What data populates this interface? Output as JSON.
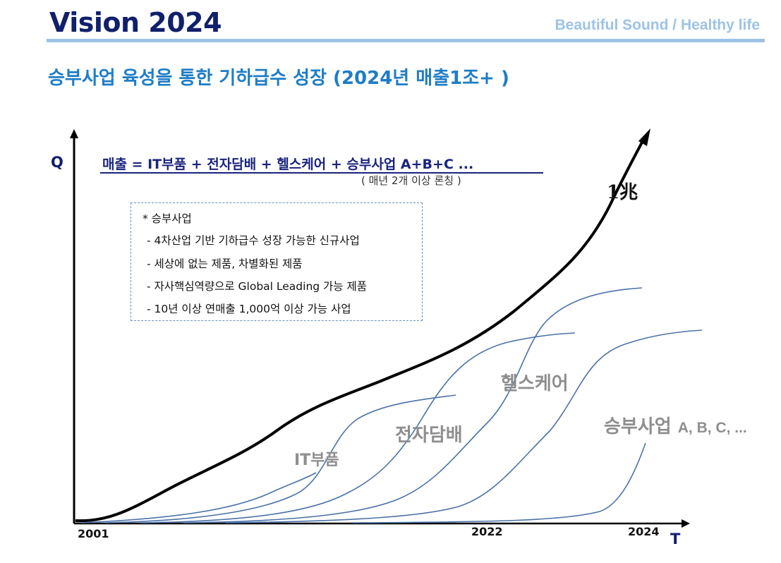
{
  "header": {
    "title": "Vision 2024",
    "slogan": "Beautiful Sound / Healthy life",
    "accent_color": "#9cc3e6",
    "title_color": "#10206b"
  },
  "subtitle": "승부사업 육성을 통한 기하급수 성장 (2024년 매출1조+ )",
  "diagram": {
    "y_axis_label": "Q",
    "x_axis_label": "T",
    "formula": "매출 = IT부품 + 전자담배 + 헬스케어 + 승부사업 A+B+C ...",
    "formula_note": "( 매년 2개 이상 론칭 )",
    "info_box": {
      "heading": "* 승부사업",
      "items": [
        "- 4차산업 기반 기하급수 성장 가능한 신규사업",
        "- 세상에 없는 제품, 차별화된 제품",
        "- 자사핵심역량으로 Global Leading 가능 제품",
        "- 10년 이상 연매출 1,000억 이상 가능 사업"
      ]
    },
    "total_curve_label": "1兆",
    "s_curves": {
      "it_parts": "IT부품",
      "e_cigarette": "전자담배",
      "healthcare": "헬스케어",
      "winning_business": "승부사업",
      "winning_business_suffix": "A, B, C, ..."
    },
    "years": {
      "start": "2001",
      "mid": "2022",
      "end": "2024"
    },
    "curve_color": "#4a72a8",
    "total_curve_color": "#000000"
  }
}
